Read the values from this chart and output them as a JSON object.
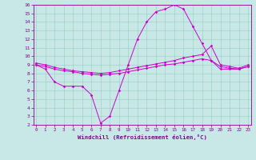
{
  "bg_color": "#c8e8e8",
  "line_color": "#cc00cc",
  "grid_color": "#99ccbb",
  "xlabel": "Windchill (Refroidissement éolien,°C)",
  "xlabel_color": "#880088",
  "tick_color": "#880088",
  "xmin": 0,
  "xmax": 23,
  "ymin": 2,
  "ymax": 16,
  "line1_x": [
    0,
    1,
    2,
    3,
    4,
    5,
    6,
    7,
    8,
    9,
    10,
    11,
    12,
    13,
    14,
    15,
    16,
    17,
    18,
    19,
    20,
    21,
    22,
    23
  ],
  "line1_y": [
    9.0,
    8.5,
    7.0,
    6.5,
    6.5,
    6.5,
    5.5,
    2.2,
    3.0,
    6.0,
    9.0,
    12.0,
    14.0,
    15.2,
    15.5,
    16.0,
    15.5,
    13.5,
    11.5,
    9.5,
    8.5,
    8.5,
    8.5,
    8.8
  ],
  "line2_x": [
    0,
    1,
    2,
    3,
    4,
    5,
    6,
    7,
    8,
    9,
    10,
    11,
    12,
    13,
    14,
    15,
    16,
    17,
    18,
    19,
    20,
    21,
    22,
    23
  ],
  "line2_y": [
    9.0,
    8.8,
    8.5,
    8.3,
    8.2,
    8.0,
    7.9,
    7.8,
    7.9,
    8.0,
    8.2,
    8.4,
    8.6,
    8.8,
    9.0,
    9.1,
    9.3,
    9.5,
    9.7,
    9.5,
    8.8,
    8.6,
    8.5,
    8.8
  ],
  "line3_x": [
    0,
    1,
    2,
    3,
    4,
    5,
    6,
    7,
    8,
    9,
    10,
    11,
    12,
    13,
    14,
    15,
    16,
    17,
    18,
    19,
    20,
    21,
    22,
    23
  ],
  "line3_y": [
    9.2,
    9.0,
    8.7,
    8.5,
    8.3,
    8.2,
    8.1,
    8.0,
    8.1,
    8.3,
    8.5,
    8.7,
    8.9,
    9.1,
    9.3,
    9.5,
    9.8,
    10.0,
    10.2,
    11.2,
    9.0,
    8.8,
    8.6,
    9.0
  ]
}
